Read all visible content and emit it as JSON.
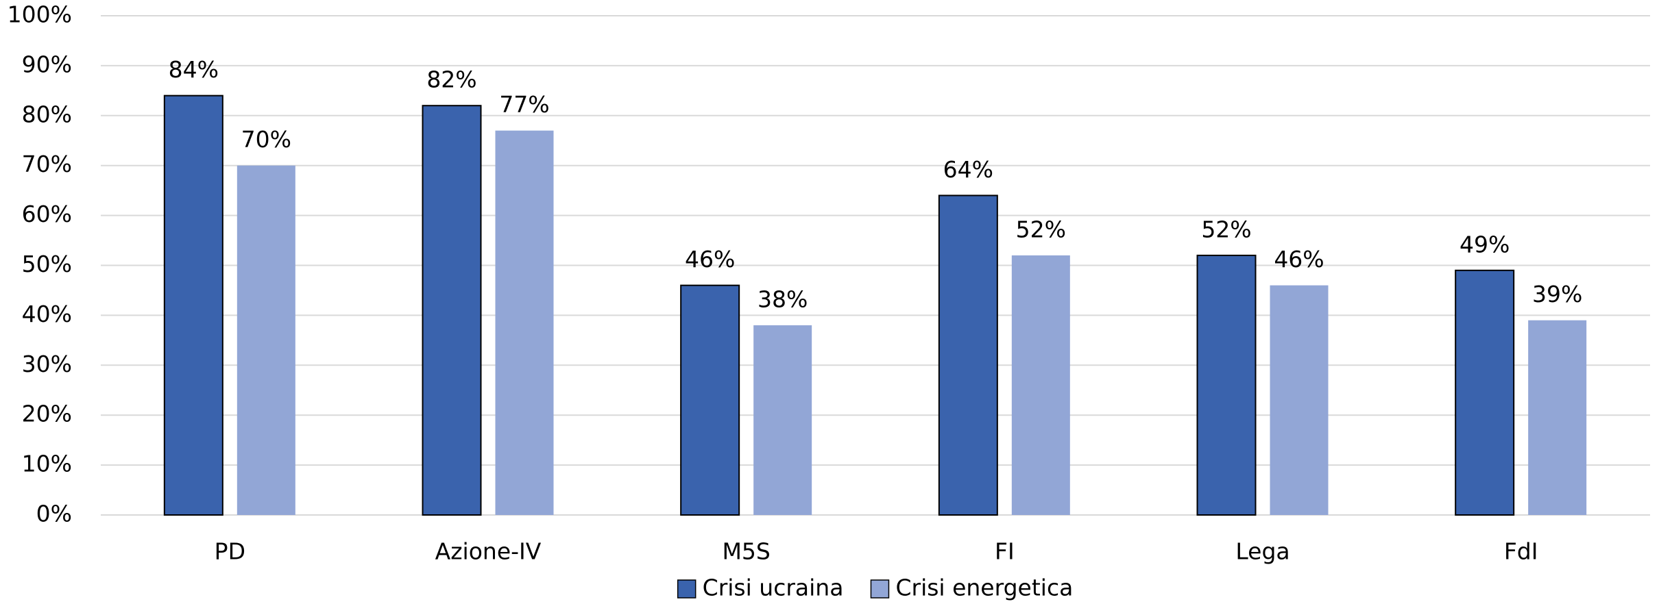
{
  "chart_data": {
    "type": "bar",
    "categories": [
      "PD",
      "Azione-IV",
      "M5S",
      "FI",
      "Lega",
      "FdI"
    ],
    "series": [
      {
        "name": "Crisi ucraina",
        "color": "#3a63ad",
        "edgecolor": "#000000",
        "values": [
          84,
          82,
          46,
          64,
          52,
          49
        ],
        "value_labels": [
          "84%",
          "82%",
          "46%",
          "64%",
          "52%",
          "49%"
        ]
      },
      {
        "name": "Crisi energetica",
        "color": "#92a6d6",
        "values": [
          70,
          77,
          38,
          52,
          46,
          39
        ],
        "value_labels": [
          "70%",
          "77%",
          "38%",
          "52%",
          "46%",
          "39%"
        ]
      }
    ],
    "ylim": [
      0,
      100
    ],
    "yticks": [
      {
        "value": 0,
        "label": "0%"
      },
      {
        "value": 10,
        "label": "10%"
      },
      {
        "value": 20,
        "label": "20%"
      },
      {
        "value": 30,
        "label": "30%"
      },
      {
        "value": 40,
        "label": "40%"
      },
      {
        "value": 50,
        "label": "50%"
      },
      {
        "value": 60,
        "label": "60%"
      },
      {
        "value": 70,
        "label": "70%"
      },
      {
        "value": 80,
        "label": "80%"
      },
      {
        "value": 90,
        "label": "90%"
      },
      {
        "value": 100,
        "label": "100%"
      }
    ],
    "grid": true,
    "legend": "bottom"
  }
}
